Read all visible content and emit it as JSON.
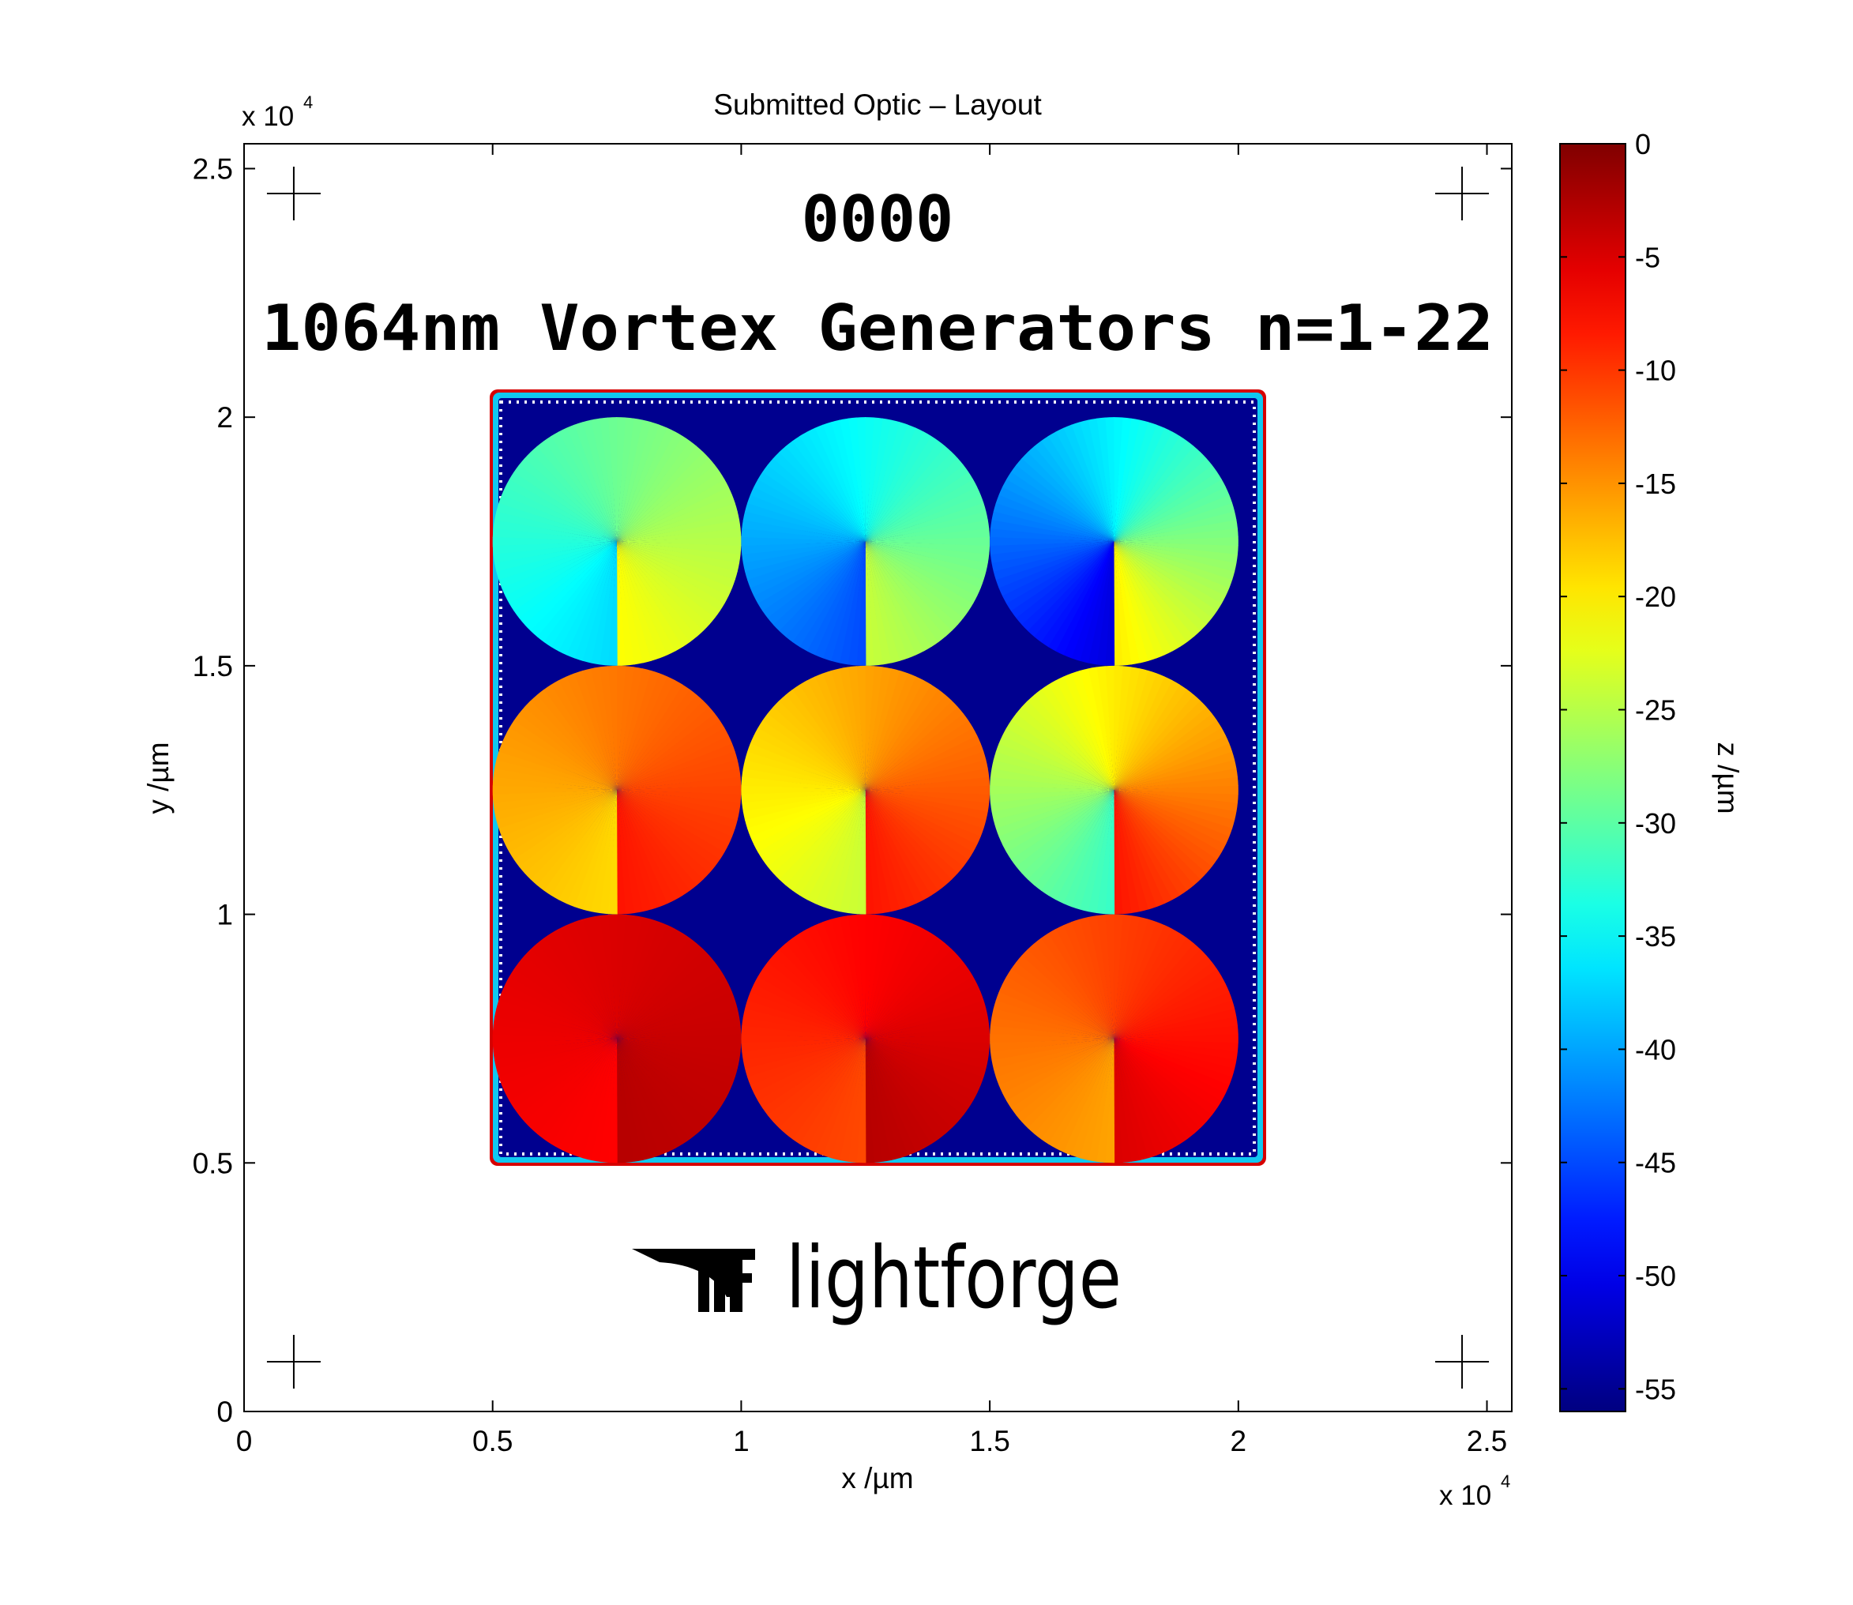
{
  "chart_data": {
    "type": "heatmap",
    "title": "Submitted Optic – Layout",
    "xlabel": "x /µm",
    "ylabel": "y /µm",
    "x_exponent_label": "x 10",
    "y_exponent_label": "x 10",
    "exponent": "4",
    "xlim": [
      0,
      25500
    ],
    "ylim": [
      0,
      25500
    ],
    "xticks": [
      0,
      0.5,
      1,
      1.5,
      2,
      2.5
    ],
    "yticks": [
      0,
      0.5,
      1,
      1.5,
      2,
      2.5
    ],
    "xtick_labels": [
      "0",
      "0.5",
      "1",
      "1.5",
      "2",
      "2.5"
    ],
    "ytick_labels": [
      "0",
      "0.5",
      "1",
      "1.5",
      "2",
      "2.5"
    ],
    "grid": false,
    "colorbar": {
      "label": "z /µm",
      "colormap": "jet",
      "range": [
        -56,
        0
      ],
      "ticks": [
        0,
        -5,
        -10,
        -15,
        -20,
        -25,
        -30,
        -35,
        -40,
        -45,
        -50,
        -55
      ],
      "tick_labels": [
        "0",
        "-5",
        "-10",
        "-15",
        "-20",
        "-25",
        "-30",
        "-35",
        "-40",
        "-45",
        "-50",
        "-55"
      ]
    },
    "optic_text": {
      "id": "0000",
      "caption": "1064nm Vortex Generators n=1-22"
    },
    "logo_text": "lightforge",
    "substrate": {
      "x_range": [
        5000,
        20000
      ],
      "y_range": [
        5000,
        20000
      ],
      "depth": -56
    },
    "vortices": [
      {
        "cx": 7500,
        "cy": 17500,
        "r": 2500,
        "z_seam_high": -21,
        "z_seam_low": -37
      },
      {
        "cx": 12500,
        "cy": 17500,
        "r": 2500,
        "z_seam_high": -24,
        "z_seam_low": -45
      },
      {
        "cx": 17500,
        "cy": 17500,
        "r": 2500,
        "z_seam_high": -20,
        "z_seam_low": -51
      },
      {
        "cx": 7500,
        "cy": 12500,
        "r": 2500,
        "z_seam_high": -8,
        "z_seam_low": -19
      },
      {
        "cx": 12500,
        "cy": 12500,
        "r": 2500,
        "z_seam_high": -8,
        "z_seam_low": -24
      },
      {
        "cx": 17500,
        "cy": 12500,
        "r": 2500,
        "z_seam_high": -8,
        "z_seam_low": -32
      },
      {
        "cx": 7500,
        "cy": 7500,
        "r": 2500,
        "z_seam_high": -3,
        "z_seam_low": -7
      },
      {
        "cx": 12500,
        "cy": 7500,
        "r": 2500,
        "z_seam_high": -3,
        "z_seam_low": -11
      },
      {
        "cx": 17500,
        "cy": 7500,
        "r": 2500,
        "z_seam_high": -5,
        "z_seam_low": -16
      }
    ],
    "alignment_marks": [
      {
        "x": 1000,
        "y": 24500
      },
      {
        "x": 24500,
        "y": 24500
      },
      {
        "x": 1000,
        "y": 1000
      },
      {
        "x": 24500,
        "y": 1000
      }
    ]
  }
}
